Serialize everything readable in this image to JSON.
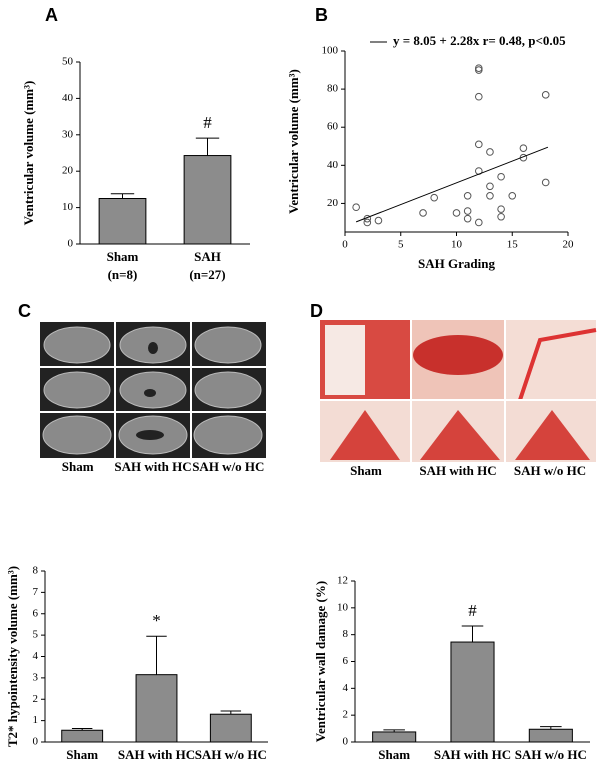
{
  "chart_data": [
    {
      "type": "bar",
      "label": "A",
      "ylabel": "Ventricular volume (mm³)",
      "categories": [
        "Sham",
        "SAH"
      ],
      "category_notes": [
        "(n=8)",
        "(n=27)"
      ],
      "values": [
        12.5,
        24.3
      ],
      "errors": [
        1.3,
        4.8
      ],
      "markers": [
        null,
        "#"
      ],
      "color": "#8c8c8c",
      "ylim": [
        0,
        50
      ],
      "yticks": [
        0,
        10,
        20,
        30,
        40,
        50
      ]
    },
    {
      "type": "scatter",
      "label": "B",
      "xlabel": "SAH Grading",
      "ylabel": "Ventricular volume (mm³)",
      "legend": "y = 8.05 + 2.28x   r= 0.48,  p<0.05",
      "x": [
        1,
        2,
        2,
        3,
        7,
        8,
        10,
        11,
        11,
        11,
        12,
        12,
        12,
        12,
        12,
        12,
        13,
        13,
        13,
        14,
        14,
        14,
        15,
        16,
        16,
        18,
        18
      ],
      "y": [
        18,
        10,
        12,
        11,
        15,
        23,
        15,
        12,
        16,
        24,
        10,
        37,
        51,
        76,
        90,
        91,
        29,
        47,
        24,
        13,
        17,
        34,
        24,
        44,
        49,
        31,
        77
      ],
      "fit": {
        "x": [
          1,
          18.2
        ],
        "y": [
          10.3,
          49.5
        ]
      },
      "xlim": [
        0,
        20
      ],
      "xticks": [
        0,
        5,
        10,
        15,
        20
      ],
      "ylim": [
        5,
        100
      ],
      "yticks": [
        20,
        40,
        60,
        80,
        100
      ]
    },
    {
      "type": "bar",
      "label": "C",
      "ylabel": "T2* hypointensity volume (mm³)",
      "image_labels": [
        "Sham",
        "SAH with HC",
        "SAH w/o HC"
      ],
      "categories": [
        "Sham",
        "SAH with HC",
        "SAH w/o HC"
      ],
      "values": [
        0.55,
        3.15,
        1.3
      ],
      "errors": [
        0.08,
        1.8,
        0.15
      ],
      "markers": [
        null,
        "*",
        null
      ],
      "color": "#8c8c8c",
      "ylim": [
        0,
        8
      ],
      "yticks": [
        0,
        1,
        2,
        3,
        4,
        5,
        6,
        7,
        8
      ]
    },
    {
      "type": "bar",
      "label": "D",
      "ylabel": "Ventricular wall damage (%)",
      "image_labels": [
        "Sham",
        "SAH with HC",
        "SAH w/o HC"
      ],
      "categories": [
        "Sham",
        "SAH with HC",
        "SAH w/o HC"
      ],
      "values": [
        0.75,
        7.45,
        0.95
      ],
      "errors": [
        0.15,
        1.2,
        0.2
      ],
      "markers": [
        null,
        "#",
        null
      ],
      "color": "#8c8c8c",
      "ylim": [
        0,
        12
      ],
      "yticks": [
        0,
        2,
        4,
        6,
        8,
        10,
        12
      ]
    }
  ]
}
